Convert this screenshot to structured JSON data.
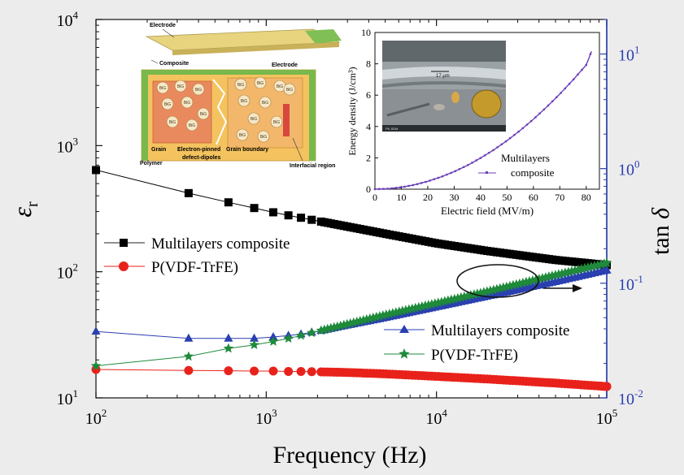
{
  "chart_data": [
    {
      "type": "line",
      "xlabel": "Frequency (Hz)",
      "ylabel_left": "ε r",
      "ylabel_right": "tan δ",
      "xscale": "log",
      "yscale_left": "log",
      "yscale_right": "log",
      "xlim": [
        100,
        100000
      ],
      "ylim_left": [
        10,
        10000
      ],
      "ylim_right": [
        0.01,
        20
      ],
      "x_tick_labels": [
        "10^2",
        "10^3",
        "10^4",
        "10^5"
      ],
      "y_left_tick_labels": [
        "10^1",
        "10^2",
        "10^3",
        "10^4"
      ],
      "y_right_tick_labels": [
        "10^-2",
        "10^-1",
        "10^0",
        "10^1"
      ],
      "legend_left": [
        {
          "label": "Multilayers composite",
          "marker": "square",
          "color": "#000000"
        },
        {
          "label": "P(VDF-TrFE)",
          "marker": "circle",
          "color": "#e8221b"
        }
      ],
      "legend_right": [
        {
          "label": "Multilayers composite",
          "marker": "triangle",
          "color": "#2a3fb0"
        },
        {
          "label": "P(VDF-TrFE)",
          "marker": "star",
          "color": "#1e8a3a"
        }
      ],
      "series": [
        {
          "name": "Multilayers composite",
          "axis": "left",
          "marker": "square",
          "color": "#000000",
          "x": [
            100,
            350,
            600,
            850,
            1100,
            1350,
            1600,
            2000,
            3000,
            5000,
            10000,
            20000,
            50000,
            100000
          ],
          "y": [
            640,
            420,
            355,
            320,
            296,
            280,
            268,
            253,
            228,
            200,
            168,
            146,
            124,
            113
          ]
        },
        {
          "name": "P(VDF-TrFE)",
          "axis": "left",
          "marker": "circle",
          "color": "#e8221b",
          "x": [
            100,
            350,
            600,
            850,
            1100,
            1350,
            1600,
            2000,
            3000,
            5000,
            10000,
            20000,
            50000,
            100000
          ],
          "y": [
            16.8,
            16.5,
            16.4,
            16.3,
            16.3,
            16.2,
            16.2,
            16.1,
            15.9,
            15.5,
            14.8,
            14.1,
            13.1,
            12.3
          ]
        },
        {
          "name": "Multilayers composite",
          "axis": "right",
          "marker": "triangle",
          "color": "#2a3fb0",
          "x": [
            100,
            350,
            600,
            850,
            1100,
            1350,
            1600,
            2000,
            3000,
            5000,
            10000,
            20000,
            50000,
            100000
          ],
          "y": [
            0.038,
            0.033,
            0.033,
            0.033,
            0.034,
            0.035,
            0.036,
            0.038,
            0.043,
            0.05,
            0.062,
            0.077,
            0.103,
            0.13
          ]
        },
        {
          "name": "P(VDF-TrFE)",
          "axis": "right",
          "marker": "star",
          "color": "#1e8a3a",
          "x": [
            100,
            350,
            600,
            850,
            1100,
            1350,
            1600,
            2000,
            3000,
            5000,
            10000,
            20000,
            50000,
            100000
          ],
          "y": [
            0.019,
            0.023,
            0.027,
            0.029,
            0.031,
            0.033,
            0.035,
            0.038,
            0.044,
            0.053,
            0.067,
            0.085,
            0.118,
            0.15
          ]
        }
      ],
      "annotations": [
        "arrow pointing right toward tan δ axis",
        "ellipse around overlapping tan δ curves"
      ]
    },
    {
      "type": "line",
      "xlabel": "Electric field (MV/m)",
      "ylabel": "Energy density (J/cm³)",
      "xlim": [
        0,
        85
      ],
      "ylim": [
        0,
        10
      ],
      "x_ticks": [
        0,
        10,
        20,
        30,
        40,
        50,
        60,
        70,
        80
      ],
      "y_ticks": [
        0,
        2,
        4,
        6,
        8,
        10
      ],
      "series": [
        {
          "name": "Multilayers composite",
          "color": "#6a3fb8",
          "x": [
            0,
            5,
            10,
            15,
            20,
            25,
            30,
            35,
            40,
            45,
            50,
            55,
            60,
            65,
            70,
            75,
            80,
            82
          ],
          "y": [
            0,
            0.03,
            0.12,
            0.28,
            0.5,
            0.78,
            1.12,
            1.52,
            1.99,
            2.51,
            3.1,
            3.75,
            4.46,
            5.24,
            6.07,
            6.97,
            7.93,
            8.8
          ]
        }
      ],
      "legend": [
        "Multilayers",
        "composite"
      ]
    }
  ],
  "inset_image": {
    "scale_label": "17 μm",
    "sem_caption": "PK-SEM"
  },
  "schematic": {
    "labels": {
      "electrode_top": "Electrode",
      "composite": "Composite",
      "electrode_right": "Electrode",
      "grain": "Grain",
      "polymer": "Polymer",
      "pinned": "Electron-pinned",
      "defect": "defect-dipoles",
      "grain_boundary": "Grain boundary",
      "interfacial": "Interfacial region"
    },
    "particle_text": "BiG"
  },
  "colors": {
    "plot_bg": "#ffffff",
    "page_bg": "#ececec",
    "right_axis": "#2a3fb0"
  }
}
